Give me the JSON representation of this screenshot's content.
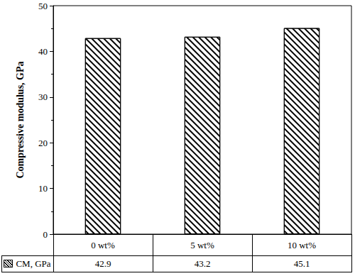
{
  "chart_data": {
    "type": "bar",
    "categories": [
      "0 wt%",
      "5 wt%",
      "10 wt%"
    ],
    "series": [
      {
        "name": "CM, GPa",
        "color": "#000000",
        "values": [
          42.9,
          43.2,
          45.1
        ]
      }
    ],
    "ylabel": "Compressive modulus, GPa",
    "ylim": [
      0,
      50
    ],
    "yticks": [
      0,
      10,
      20,
      30,
      40,
      50
    ],
    "grid": false
  }
}
